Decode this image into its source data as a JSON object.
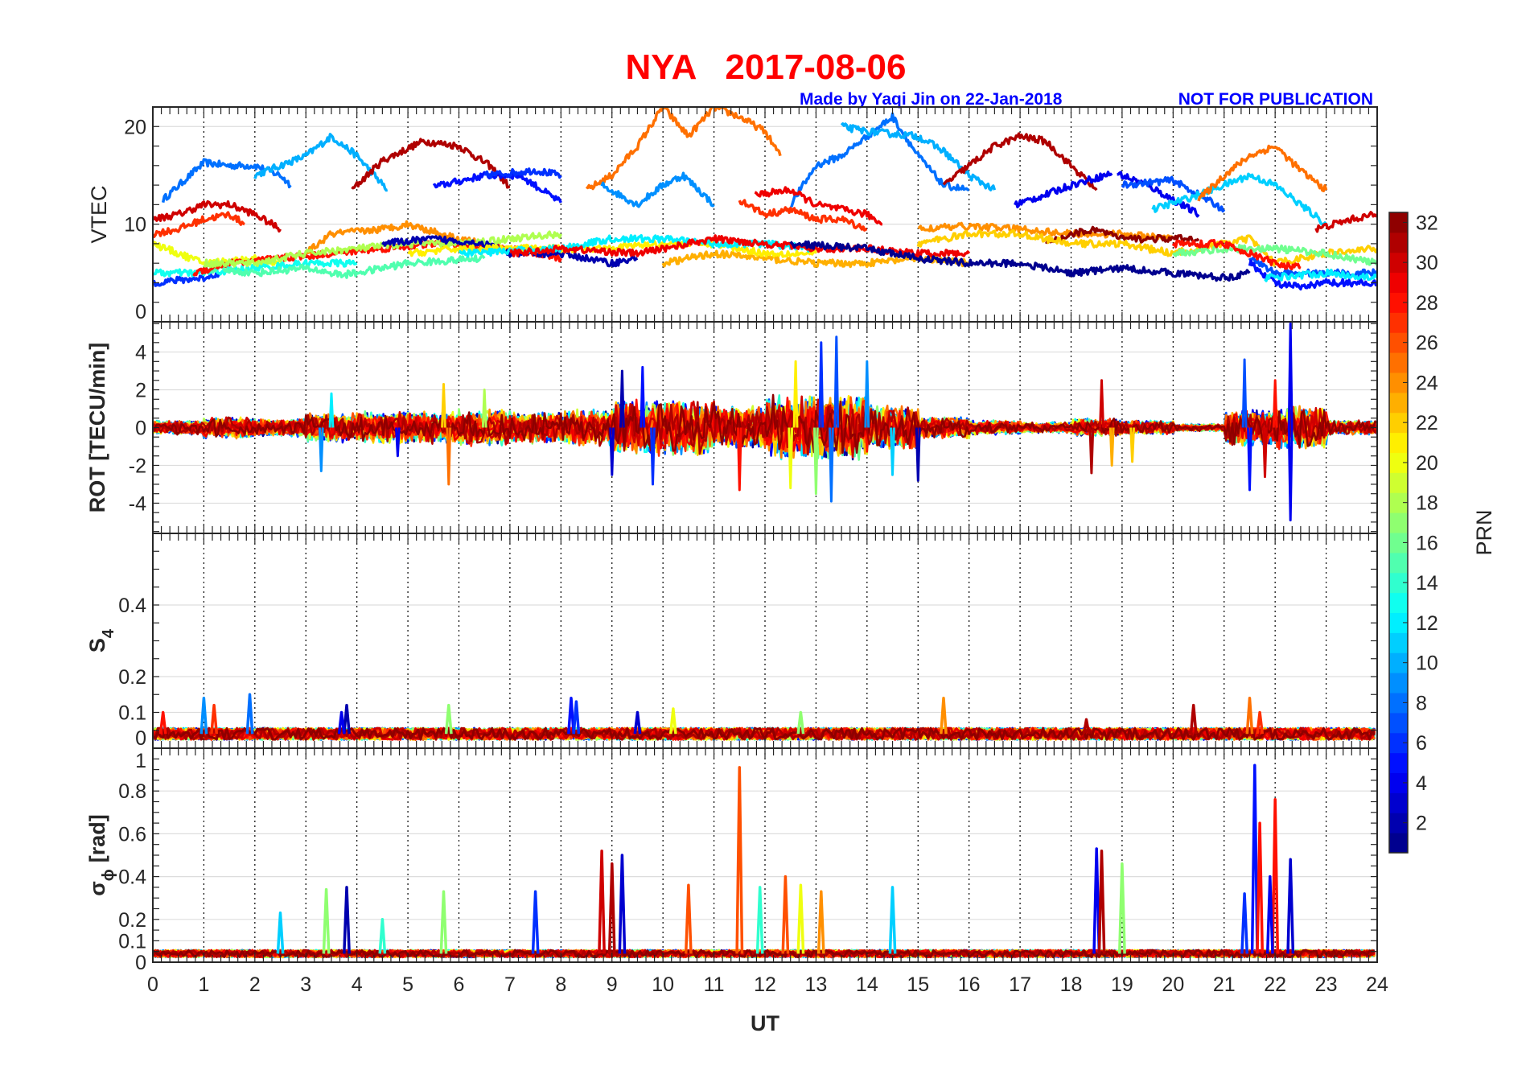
{
  "header": {
    "title": "NYA   2017-08-06",
    "credit": "Made by Yaqi Jin on 22-Jan-2018",
    "notice": "NOT FOR PUBLICATION"
  },
  "colors": {
    "title": "#ff0000",
    "notice": "#0000ff",
    "grid": "#dddddd",
    "axis": "#262626"
  },
  "chart_data": [
    {
      "type": "line",
      "id": "vtec",
      "ylabel": "VTEC",
      "ylim": [
        0,
        22
      ],
      "yticks": [
        0,
        10,
        20
      ],
      "ytick_labels": [
        "0",
        "10",
        "20"
      ],
      "series": [
        {
          "prn": 8,
          "x": [
            0.2,
            1,
            1.5,
            2,
            2.5,
            2.7
          ],
          "y": [
            12.5,
            16.3,
            16,
            16,
            15,
            14
          ]
        },
        {
          "prn": 10,
          "x": [
            2,
            3,
            3.5,
            4,
            4.6
          ],
          "y": [
            15,
            17,
            19,
            17,
            13.5
          ]
        },
        {
          "prn": 31,
          "x": [
            3.9,
            4.5,
            5.3,
            6,
            6.6,
            7
          ],
          "y": [
            13.5,
            16.5,
            18.5,
            18,
            16,
            13.8
          ]
        },
        {
          "prn": 5,
          "x": [
            5.5,
            6.5,
            7.2,
            8
          ],
          "y": [
            13.8,
            15,
            15,
            12.2
          ]
        },
        {
          "prn": 6,
          "x": [
            6.5,
            7.5,
            8
          ],
          "y": [
            15,
            15.5,
            15
          ]
        },
        {
          "prn": 25,
          "x": [
            8.5,
            9,
            9.5,
            10,
            10.5,
            11,
            11.5,
            12,
            12.3
          ],
          "y": [
            13.5,
            15,
            18,
            22,
            19,
            22,
            21,
            19.5,
            17
          ]
        },
        {
          "prn": 9,
          "x": [
            8.8,
            9.5,
            10,
            10.4,
            11
          ],
          "y": [
            14,
            12,
            14,
            15,
            12
          ]
        },
        {
          "prn": 30,
          "x": [
            0,
            0.5,
            1,
            1.5,
            2,
            2.5
          ],
          "y": [
            10.5,
            11,
            12,
            12,
            11,
            9.5
          ]
        },
        {
          "prn": 27,
          "x": [
            0,
            0.5,
            1,
            1.5,
            1.8
          ],
          "y": [
            9,
            9.5,
            10.5,
            11,
            10
          ]
        },
        {
          "prn": 8,
          "x": [
            12.5,
            13,
            13.5,
            14,
            14.5,
            15,
            15.5,
            16
          ],
          "y": [
            12,
            16,
            17,
            19,
            21,
            17,
            14,
            13.5
          ]
        },
        {
          "prn": 10,
          "x": [
            13.5,
            14,
            15,
            15.5,
            16,
            16.5
          ],
          "y": [
            20,
            19.5,
            19,
            17.5,
            15,
            13.5
          ]
        },
        {
          "prn": 31,
          "x": [
            15.5,
            16,
            16.5,
            17,
            17.5,
            18,
            18.5
          ],
          "y": [
            14,
            16,
            18,
            19,
            18.5,
            16,
            13.5
          ]
        },
        {
          "prn": 4,
          "x": [
            16.9,
            17.5,
            18,
            18.8
          ],
          "y": [
            12,
            13,
            14,
            15.2
          ]
        },
        {
          "prn": 4,
          "x": [
            18.9,
            19.5,
            20.5
          ],
          "y": [
            15.2,
            14,
            11
          ]
        },
        {
          "prn": 7,
          "x": [
            19,
            20,
            21
          ],
          "y": [
            14,
            14.5,
            11.5
          ]
        },
        {
          "prn": 11,
          "x": [
            19.6,
            20.5,
            21.5,
            22,
            23
          ],
          "y": [
            11.5,
            13,
            15,
            14,
            10
          ]
        },
        {
          "prn": 25,
          "x": [
            20.5,
            21,
            21.5,
            22,
            22.5,
            23
          ],
          "y": [
            12.5,
            15,
            17,
            18,
            15.5,
            13.5
          ]
        },
        {
          "prn": 29,
          "x": [
            11.8,
            12.5,
            13,
            14,
            14.3
          ],
          "y": [
            13,
            13.5,
            12,
            11,
            10
          ]
        },
        {
          "prn": 27,
          "x": [
            11.5,
            12,
            12.5,
            13,
            13.5,
            14
          ],
          "y": [
            12.5,
            11,
            11.5,
            10.5,
            10.5,
            9.5
          ]
        },
        {
          "prn": 30,
          "x": [
            22.8,
            23.5,
            24
          ],
          "y": [
            9.5,
            10.5,
            11
          ]
        },
        {
          "prn": 6,
          "x": [
            0,
            1,
            1.3
          ],
          "y": [
            4,
            4.5,
            5
          ]
        },
        {
          "prn": 20,
          "x": [
            0,
            1,
            2,
            2.5
          ],
          "y": [
            8,
            6,
            6.5,
            6
          ]
        },
        {
          "prn": 13,
          "x": [
            0,
            1,
            2,
            3,
            4
          ],
          "y": [
            5,
            5,
            5.5,
            6,
            6
          ]
        },
        {
          "prn": 15,
          "x": [
            1,
            2,
            3,
            3.7,
            4,
            5,
            6.5
          ],
          "y": [
            5.5,
            5,
            5.5,
            4.8,
            5,
            6,
            6.5
          ]
        },
        {
          "prn": 28,
          "x": [
            0.8,
            1.5,
            2.5,
            3.5,
            4.5,
            5.5,
            7,
            8
          ],
          "y": [
            5,
            6,
            6.5,
            7,
            7.5,
            8,
            7.5,
            6.5
          ]
        },
        {
          "prn": 24,
          "x": [
            3,
            3.5,
            4.5,
            5,
            6,
            6.5
          ],
          "y": [
            7,
            9,
            9.5,
            10,
            8.5,
            8
          ]
        },
        {
          "prn": 18,
          "x": [
            1,
            2,
            3,
            4,
            5,
            6,
            7,
            8
          ],
          "y": [
            6,
            6,
            7,
            7.5,
            8,
            8,
            8.5,
            9
          ]
        },
        {
          "prn": 2,
          "x": [
            4.5,
            5.5,
            6.5,
            7,
            8,
            9,
            9.5
          ],
          "y": [
            8,
            8.5,
            8,
            7,
            7,
            6,
            6.5
          ]
        },
        {
          "prn": 23,
          "x": [
            10,
            11,
            12,
            13,
            14,
            15,
            16
          ],
          "y": [
            6,
            7,
            6.5,
            6,
            6,
            6.5,
            6
          ]
        },
        {
          "prn": 21,
          "x": [
            5,
            6,
            7,
            8.5,
            10,
            11,
            12,
            13
          ],
          "y": [
            7,
            7.5,
            7.5,
            7.5,
            8,
            8,
            7,
            7
          ]
        },
        {
          "prn": 12,
          "x": [
            6,
            8,
            9,
            10,
            11,
            12,
            13
          ],
          "y": [
            7,
            7.5,
            8.5,
            8.5,
            8,
            8,
            7.5
          ]
        },
        {
          "prn": 29,
          "x": [
            7,
            8,
            9.5,
            10.5,
            11,
            12,
            13,
            14,
            15,
            16
          ],
          "y": [
            7,
            7.5,
            7,
            8,
            8.5,
            8,
            7.5,
            7.5,
            7,
            7
          ]
        },
        {
          "prn": 24,
          "x": [
            15,
            16,
            17,
            18,
            19,
            20
          ],
          "y": [
            9.5,
            9.8,
            9.5,
            9,
            9,
            8.5
          ]
        },
        {
          "prn": 1,
          "x": [
            12.5,
            14,
            15,
            16,
            17,
            17.5,
            18,
            19,
            20,
            21,
            21.5
          ],
          "y": [
            8,
            7.5,
            6.5,
            6,
            6,
            5.5,
            5,
            5.5,
            5,
            4.5,
            5
          ]
        },
        {
          "prn": 32,
          "x": [
            17.5,
            18,
            18.5,
            19,
            20,
            20.5
          ],
          "y": [
            8,
            9,
            9.5,
            8.5,
            8.5,
            8.5
          ]
        },
        {
          "prn": 22,
          "x": [
            15,
            16,
            17,
            18,
            19,
            20,
            21.5,
            22,
            23,
            24
          ],
          "y": [
            8,
            9,
            9,
            8,
            8,
            7,
            8.5,
            6,
            7,
            7.5
          ]
        },
        {
          "prn": 16,
          "x": [
            20,
            21,
            22,
            23,
            24
          ],
          "y": [
            7,
            7.5,
            7.5,
            7,
            6
          ]
        },
        {
          "prn": 7,
          "x": [
            21.5,
            22,
            23,
            24
          ],
          "y": [
            6.5,
            5,
            5,
            5
          ]
        },
        {
          "prn": 5,
          "x": [
            21.5,
            22,
            22.5,
            23,
            24
          ],
          "y": [
            6,
            4,
            3.5,
            4,
            4
          ]
        },
        {
          "prn": 12,
          "x": [
            21.8,
            23,
            24
          ],
          "y": [
            4.5,
            5,
            4.5
          ]
        },
        {
          "prn": 28,
          "x": [
            20,
            21,
            21.5,
            22,
            22.5
          ],
          "y": [
            8,
            8,
            7,
            6,
            5.5
          ]
        }
      ]
    },
    {
      "type": "line",
      "id": "rot",
      "ylabel": "ROT [TECU/min]",
      "ylim": [
        -5.6,
        5.6
      ],
      "yticks": [
        -4,
        -2,
        0,
        2,
        4
      ],
      "ytick_labels": [
        "-4",
        "-2",
        "0",
        "2",
        "4"
      ],
      "hourly_amplitude": [
        0.4,
        0.6,
        0.5,
        0.8,
        0.9,
        0.9,
        1.0,
        0.9,
        1.0,
        1.5,
        1.5,
        1.2,
        1.8,
        1.8,
        1.3,
        0.6,
        0.4,
        0.3,
        0.5,
        0.4,
        0.2,
        1.0,
        1.2,
        0.4
      ],
      "spikes": [
        [
          3.3,
          -2.3,
          9
        ],
        [
          3.5,
          1.8,
          12
        ],
        [
          4.8,
          -1.5,
          4
        ],
        [
          5.8,
          -3,
          25
        ],
        [
          5.7,
          2.3,
          22
        ],
        [
          6.5,
          2,
          18
        ],
        [
          9,
          -2.5,
          3
        ],
        [
          9.2,
          3,
          2
        ],
        [
          9.8,
          -3,
          6
        ],
        [
          9.6,
          3.2,
          5
        ],
        [
          11.5,
          -3.3,
          28
        ],
        [
          12.5,
          -3.2,
          20
        ],
        [
          12.6,
          3.5,
          21
        ],
        [
          13,
          -3.5,
          17
        ],
        [
          13.3,
          -3.9,
          8
        ],
        [
          13.4,
          4.8,
          7
        ],
        [
          13.1,
          4.5,
          6
        ],
        [
          14,
          3.5,
          9
        ],
        [
          14.5,
          -2.5,
          11
        ],
        [
          15,
          -2.8,
          2
        ],
        [
          18.4,
          -2.4,
          31
        ],
        [
          18.6,
          2.5,
          30
        ],
        [
          18.8,
          -2,
          23
        ],
        [
          19.2,
          -1.8,
          22
        ],
        [
          21.4,
          3.6,
          7
        ],
        [
          21.5,
          -3.3,
          5
        ],
        [
          22.3,
          5.5,
          4
        ],
        [
          22.3,
          -4.9,
          4
        ],
        [
          22,
          2.5,
          28
        ],
        [
          21.8,
          -2.6,
          30
        ]
      ]
    },
    {
      "type": "line",
      "id": "s4",
      "ylabel": "S",
      "ylabel_sub": "4",
      "ylim": [
        0,
        0.6
      ],
      "yticks": [
        0,
        0.1,
        0.2,
        0.4
      ],
      "ytick_labels": [
        "0",
        "0.1",
        "0.2",
        "0.4"
      ],
      "baseline": 0.04,
      "spikes": [
        [
          0.2,
          0.1,
          28
        ],
        [
          1.0,
          0.14,
          9
        ],
        [
          1.2,
          0.12,
          27
        ],
        [
          1.9,
          0.15,
          8
        ],
        [
          3.8,
          0.12,
          2
        ],
        [
          3.7,
          0.1,
          4
        ],
        [
          5.8,
          0.12,
          17
        ],
        [
          8.2,
          0.14,
          5
        ],
        [
          8.3,
          0.13,
          6
        ],
        [
          9.5,
          0.1,
          3
        ],
        [
          10.2,
          0.11,
          20
        ],
        [
          12.7,
          0.1,
          17
        ],
        [
          15.5,
          0.14,
          24
        ],
        [
          18.3,
          0.08,
          31
        ],
        [
          20.4,
          0.12,
          31
        ],
        [
          21.5,
          0.14,
          25
        ],
        [
          21.7,
          0.1,
          27
        ]
      ]
    },
    {
      "type": "line",
      "id": "sigma_phi",
      "ylabel": "σ",
      "ylabel_sub": "ϕ",
      "ylabel_unit": "[rad]",
      "ylim": [
        0,
        1
      ],
      "yticks": [
        0,
        0.1,
        0.2,
        0.4,
        0.6,
        0.8,
        1
      ],
      "ytick_labels": [
        "0",
        "0.1",
        "0.2",
        "0.4",
        "0.6",
        "0.8",
        "1"
      ],
      "baseline": 0.04,
      "spikes": [
        [
          3.4,
          0.34,
          17
        ],
        [
          3.8,
          0.35,
          2
        ],
        [
          5.7,
          0.33,
          17
        ],
        [
          7.5,
          0.33,
          6
        ],
        [
          8.8,
          0.52,
          30
        ],
        [
          9,
          0.46,
          31
        ],
        [
          9.2,
          0.5,
          3
        ],
        [
          10.5,
          0.36,
          26
        ],
        [
          11.5,
          0.91,
          26
        ],
        [
          11.9,
          0.35,
          14
        ],
        [
          12.4,
          0.4,
          26
        ],
        [
          12.7,
          0.36,
          20
        ],
        [
          13.1,
          0.33,
          24
        ],
        [
          14.5,
          0.35,
          11
        ],
        [
          18.5,
          0.53,
          4
        ],
        [
          18.6,
          0.52,
          31
        ],
        [
          19,
          0.46,
          17
        ],
        [
          21.4,
          0.32,
          6
        ],
        [
          21.6,
          0.92,
          5
        ],
        [
          21.7,
          0.65,
          28
        ],
        [
          22,
          0.76,
          28
        ],
        [
          22.3,
          0.48,
          3
        ],
        [
          21.9,
          0.4,
          4
        ],
        [
          2.5,
          0.23,
          11
        ],
        [
          4.5,
          0.2,
          14
        ]
      ]
    }
  ],
  "xaxis": {
    "label": "UT",
    "xlim": [
      0,
      24
    ],
    "tick_labels": [
      "0",
      "1",
      "2",
      "3",
      "4",
      "5",
      "6",
      "7",
      "8",
      "9",
      "10",
      "11",
      "12",
      "13",
      "14",
      "15",
      "16",
      "17",
      "18",
      "19",
      "20",
      "21",
      "22",
      "23",
      "24"
    ]
  },
  "colorbar": {
    "label": "PRN",
    "range": [
      1,
      32
    ],
    "colormap": "jet",
    "levels": 32,
    "tick_labels": [
      "2",
      "4",
      "6",
      "8",
      "10",
      "12",
      "14",
      "16",
      "18",
      "20",
      "22",
      "24",
      "26",
      "28",
      "30",
      "32"
    ]
  }
}
